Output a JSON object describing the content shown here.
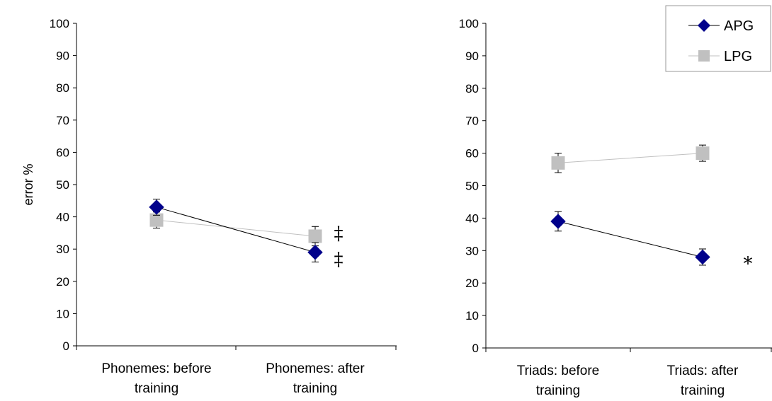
{
  "chart_data": [
    {
      "type": "line",
      "title": "",
      "ylabel": "error %",
      "ylim": [
        0,
        100
      ],
      "yticks": [
        0,
        10,
        20,
        30,
        40,
        50,
        60,
        70,
        80,
        90,
        100
      ],
      "categories": [
        [
          "Phonemes: before",
          "training"
        ],
        [
          "Phonemes: after",
          "training"
        ]
      ],
      "series": [
        {
          "name": "APG",
          "values": [
            43,
            29
          ],
          "errors": [
            2.5,
            3
          ],
          "color": "#00008B",
          "marker": "diamond"
        },
        {
          "name": "LPG",
          "values": [
            39,
            34
          ],
          "errors": [
            2.5,
            3
          ],
          "color": "#C0C0C0",
          "marker": "square"
        }
      ],
      "annotations": [
        {
          "text": "‡",
          "y": 35
        },
        {
          "text": "‡",
          "y": 27
        }
      ],
      "legend": null
    },
    {
      "type": "line",
      "title": "",
      "ylabel": "",
      "ylim": [
        0,
        100
      ],
      "yticks": [
        0,
        10,
        20,
        30,
        40,
        50,
        60,
        70,
        80,
        90,
        100
      ],
      "categories": [
        [
          "Triads: before",
          "training"
        ],
        [
          "Triads: after",
          "training"
        ]
      ],
      "series": [
        {
          "name": "APG",
          "values": [
            39,
            28
          ],
          "errors": [
            3,
            2.5
          ],
          "color": "#00008B",
          "marker": "diamond"
        },
        {
          "name": "LPG",
          "values": [
            57,
            60
          ],
          "errors": [
            3,
            2.5
          ],
          "color": "#C0C0C0",
          "marker": "square"
        }
      ],
      "annotations": [
        {
          "text": "*",
          "y": 26
        }
      ],
      "legend": {
        "position": "top-right",
        "entries": [
          "APG",
          "LPG"
        ]
      }
    }
  ]
}
